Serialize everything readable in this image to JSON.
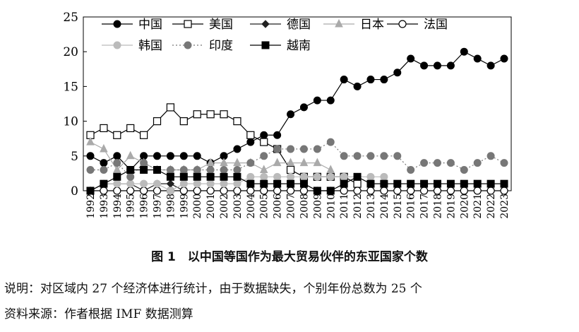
{
  "figure": {
    "caption": "图 1　以中国等国作为最大贸易伙伴的东亚国家个数",
    "note": "说明：对区域内 27 个经济体进行统计，由于数据缺失，个别年份总数为 25 个",
    "source": "资料来源：作者根据 IMF 数据测算"
  },
  "chart_data": {
    "type": "line",
    "title": "",
    "xlabel": "",
    "ylabel": "",
    "ylim": [
      0,
      25
    ],
    "yticks": [
      0,
      5,
      10,
      15,
      20,
      25
    ],
    "grid": false,
    "legend_position": "top-left",
    "x": [
      "1992",
      "1993",
      "1994",
      "1995",
      "1996",
      "1997",
      "1998",
      "1999",
      "2000",
      "2001",
      "2002",
      "2003",
      "2004",
      "2005",
      "2006",
      "2007",
      "2008",
      "2009",
      "2010",
      "2011",
      "2012",
      "2013",
      "2014",
      "2015",
      "2016",
      "2017",
      "2018",
      "2019",
      "2020",
      "2021",
      "2022",
      "2023"
    ],
    "series": [
      {
        "name": "中国",
        "marker": "circle-filled",
        "line": "solid",
        "color": "#000000",
        "values": [
          5,
          4,
          5,
          3,
          5,
          5,
          5,
          5,
          5,
          4,
          5,
          6,
          7,
          8,
          8,
          11,
          12,
          13,
          13,
          16,
          15,
          16,
          16,
          17,
          19,
          18,
          18,
          18,
          20,
          19,
          18,
          19
        ]
      },
      {
        "name": "美国",
        "marker": "square-open",
        "line": "solid",
        "color": "#000000",
        "values": [
          8,
          9,
          8,
          9,
          8,
          10,
          12,
          10,
          11,
          11,
          11,
          10,
          8,
          7,
          6,
          3,
          2,
          2,
          2,
          2,
          1,
          null,
          null,
          null,
          null,
          null,
          null,
          null,
          null,
          null,
          null,
          null
        ]
      },
      {
        "name": "德国",
        "marker": "diamond-filled",
        "line": "solid",
        "color": "#222222",
        "values": [
          0,
          1,
          1,
          1,
          0,
          1,
          1,
          0,
          null,
          null,
          null,
          null,
          null,
          null,
          null,
          null,
          null,
          null,
          null,
          null,
          null,
          null,
          null,
          null,
          null,
          null,
          null,
          null,
          null,
          null,
          null,
          null
        ]
      },
      {
        "name": "日本",
        "marker": "triangle-filled",
        "line": "solid",
        "color": "#aaaaaa",
        "values": [
          7,
          6,
          3,
          5,
          4,
          3,
          3,
          3,
          3,
          4,
          4,
          4,
          4,
          3,
          4,
          4,
          4,
          4,
          3,
          null,
          null,
          null,
          null,
          null,
          null,
          null,
          null,
          null,
          null,
          null,
          null,
          null
        ]
      },
      {
        "name": "法国",
        "marker": "circle-open",
        "line": "solid",
        "color": "#000000",
        "values": [
          0,
          0,
          0,
          0,
          0,
          0,
          0,
          0,
          0,
          0,
          0,
          0,
          0,
          0,
          0,
          0,
          0,
          0,
          0,
          0,
          0,
          0,
          0,
          0,
          0,
          0,
          0,
          0,
          0,
          0,
          0,
          0
        ]
      },
      {
        "name": "韩国",
        "marker": "circle-filled",
        "line": "solid",
        "color": "#bbbbbb",
        "values": [
          null,
          1,
          1,
          1,
          1,
          1,
          0,
          1,
          1,
          1,
          1,
          1,
          2,
          2,
          2,
          2,
          2,
          2,
          2,
          2,
          2,
          2,
          2,
          null,
          null,
          null,
          null,
          null,
          null,
          null,
          null,
          null
        ]
      },
      {
        "name": "印度",
        "marker": "circle-filled",
        "line": "dotted",
        "color": "#777777",
        "values": [
          3,
          3,
          4,
          2,
          4,
          3,
          3,
          3,
          3,
          3,
          3,
          3,
          4,
          5,
          6,
          6,
          6,
          6,
          7,
          5,
          5,
          5,
          5,
          5,
          3,
          4,
          4,
          4,
          3,
          4,
          5,
          4
        ]
      },
      {
        "name": "越南",
        "marker": "square-filled",
        "line": "solid",
        "color": "#000000",
        "values": [
          0,
          1,
          2,
          3,
          3,
          3,
          2,
          2,
          2,
          2,
          2,
          2,
          1,
          1,
          1,
          1,
          1,
          0,
          0,
          1,
          2,
          1,
          1,
          1,
          1,
          1,
          1,
          1,
          1,
          1,
          1,
          1
        ]
      }
    ]
  }
}
